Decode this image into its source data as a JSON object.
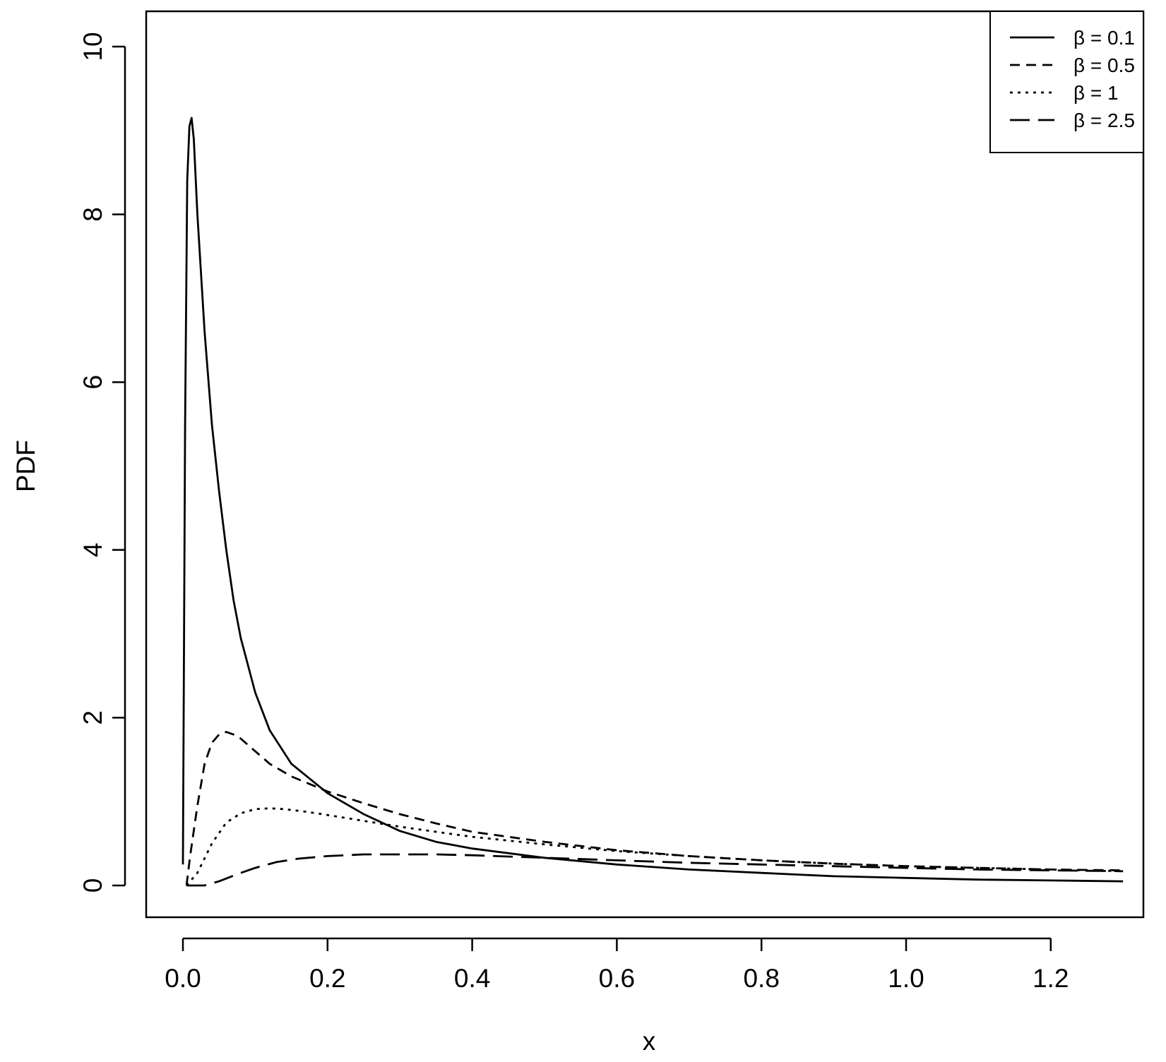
{
  "chart_data": {
    "type": "line",
    "title": "",
    "xlabel": "x",
    "ylabel": "PDF",
    "xlim": [
      0,
      1.3
    ],
    "ylim": [
      0,
      10
    ],
    "x_ticks": [
      "0.0",
      "0.2",
      "0.4",
      "0.6",
      "0.8",
      "1.0",
      "1.2"
    ],
    "y_ticks": [
      "0",
      "2",
      "4",
      "6",
      "8",
      "10"
    ],
    "grid": false,
    "legend_position": "top-right",
    "series": [
      {
        "name": "β = 0.1",
        "line_style": "solid",
        "color": "#000000",
        "points": [
          [
            0.0,
            0.25
          ],
          [
            0.003,
            5.5
          ],
          [
            0.006,
            8.4
          ],
          [
            0.009,
            9.05
          ],
          [
            0.012,
            9.15
          ],
          [
            0.015,
            8.9
          ],
          [
            0.02,
            8.0
          ],
          [
            0.03,
            6.6
          ],
          [
            0.04,
            5.5
          ],
          [
            0.05,
            4.7
          ],
          [
            0.06,
            4.0
          ],
          [
            0.07,
            3.4
          ],
          [
            0.08,
            2.95
          ],
          [
            0.1,
            2.3
          ],
          [
            0.12,
            1.85
          ],
          [
            0.15,
            1.45
          ],
          [
            0.2,
            1.1
          ],
          [
            0.25,
            0.85
          ],
          [
            0.3,
            0.65
          ],
          [
            0.35,
            0.52
          ],
          [
            0.4,
            0.44
          ],
          [
            0.5,
            0.33
          ],
          [
            0.6,
            0.25
          ],
          [
            0.7,
            0.19
          ],
          [
            0.8,
            0.15
          ],
          [
            0.9,
            0.11
          ],
          [
            1.0,
            0.09
          ],
          [
            1.1,
            0.07
          ],
          [
            1.2,
            0.06
          ],
          [
            1.3,
            0.05
          ]
        ]
      },
      {
        "name": "β = 0.5",
        "line_style": "dashed",
        "color": "#000000",
        "points": [
          [
            0.005,
            0.0
          ],
          [
            0.01,
            0.35
          ],
          [
            0.02,
            0.95
          ],
          [
            0.03,
            1.45
          ],
          [
            0.04,
            1.7
          ],
          [
            0.05,
            1.8
          ],
          [
            0.06,
            1.83
          ],
          [
            0.07,
            1.8
          ],
          [
            0.08,
            1.75
          ],
          [
            0.1,
            1.6
          ],
          [
            0.12,
            1.45
          ],
          [
            0.15,
            1.3
          ],
          [
            0.2,
            1.12
          ],
          [
            0.25,
            0.98
          ],
          [
            0.3,
            0.85
          ],
          [
            0.35,
            0.74
          ],
          [
            0.4,
            0.64
          ],
          [
            0.5,
            0.52
          ],
          [
            0.6,
            0.42
          ],
          [
            0.7,
            0.35
          ],
          [
            0.8,
            0.3
          ],
          [
            0.9,
            0.26
          ],
          [
            1.0,
            0.23
          ],
          [
            1.1,
            0.21
          ],
          [
            1.2,
            0.19
          ],
          [
            1.3,
            0.18
          ]
        ]
      },
      {
        "name": "β = 1",
        "line_style": "dotted",
        "color": "#000000",
        "points": [
          [
            0.005,
            0.0
          ],
          [
            0.02,
            0.15
          ],
          [
            0.04,
            0.5
          ],
          [
            0.06,
            0.75
          ],
          [
            0.08,
            0.86
          ],
          [
            0.1,
            0.91
          ],
          [
            0.12,
            0.92
          ],
          [
            0.14,
            0.91
          ],
          [
            0.17,
            0.88
          ],
          [
            0.2,
            0.84
          ],
          [
            0.25,
            0.77
          ],
          [
            0.3,
            0.7
          ],
          [
            0.35,
            0.64
          ],
          [
            0.4,
            0.58
          ],
          [
            0.5,
            0.49
          ],
          [
            0.6,
            0.41
          ],
          [
            0.7,
            0.35
          ],
          [
            0.8,
            0.3
          ],
          [
            0.9,
            0.26
          ],
          [
            1.0,
            0.23
          ],
          [
            1.1,
            0.21
          ],
          [
            1.2,
            0.19
          ],
          [
            1.3,
            0.17
          ]
        ]
      },
      {
        "name": "β = 2.5",
        "line_style": "longdash",
        "color": "#000000",
        "points": [
          [
            0.005,
            0.0
          ],
          [
            0.03,
            0.0
          ],
          [
            0.05,
            0.05
          ],
          [
            0.08,
            0.15
          ],
          [
            0.1,
            0.21
          ],
          [
            0.13,
            0.28
          ],
          [
            0.16,
            0.32
          ],
          [
            0.2,
            0.35
          ],
          [
            0.25,
            0.37
          ],
          [
            0.3,
            0.37
          ],
          [
            0.35,
            0.37
          ],
          [
            0.4,
            0.36
          ],
          [
            0.5,
            0.33
          ],
          [
            0.6,
            0.3
          ],
          [
            0.7,
            0.27
          ],
          [
            0.8,
            0.25
          ],
          [
            0.9,
            0.23
          ],
          [
            1.0,
            0.21
          ],
          [
            1.1,
            0.19
          ],
          [
            1.2,
            0.18
          ],
          [
            1.3,
            0.17
          ]
        ]
      }
    ]
  }
}
